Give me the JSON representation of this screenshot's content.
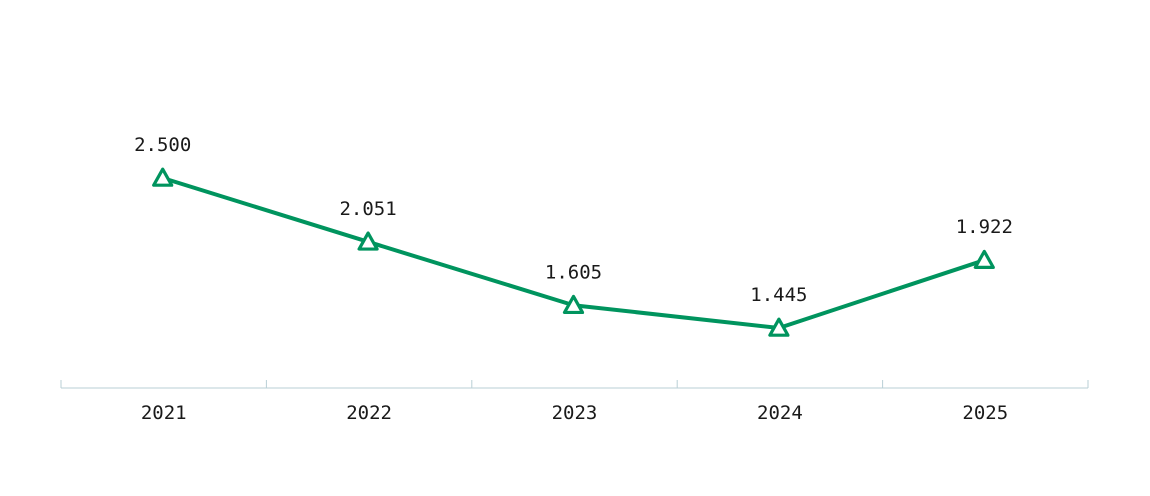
{
  "chart_data": {
    "type": "line",
    "categories": [
      "2021",
      "2022",
      "2023",
      "2024",
      "2025"
    ],
    "series": [
      {
        "values": [
          2.5,
          2.051,
          1.605,
          1.445,
          1.922
        ],
        "labels": [
          "2.500",
          "2.051",
          "1.605",
          "1.445",
          "1.922"
        ],
        "color": "#00945e",
        "marker": "triangle"
      }
    ],
    "title": "",
    "xlabel": "",
    "ylabel": "",
    "ylim": [
      0.8,
      3.0
    ],
    "grid": false,
    "axis_color": "#b9cfd6"
  }
}
